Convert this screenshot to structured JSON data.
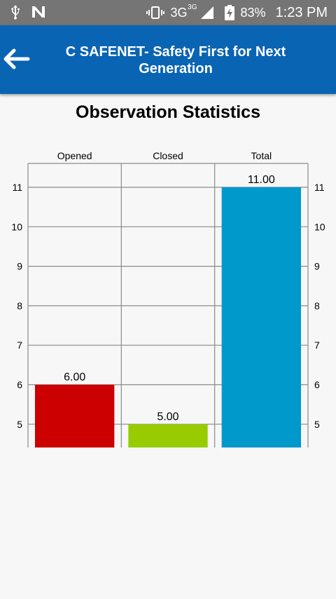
{
  "status_bar": {
    "network": "3G",
    "network_sup": "3G",
    "battery": "83%",
    "time": "1:23 PM"
  },
  "app_bar": {
    "back_icon": "arrow-left-icon",
    "title": "C SAFENET- Safety First for Next Generation"
  },
  "colors": {
    "status_bar": "#757575",
    "app_bar": "#0a64b4",
    "opened": "#cc0000",
    "closed": "#99cc00",
    "total": "#0099cc"
  },
  "chart_data": {
    "type": "bar",
    "title": "Observation Statistics",
    "categories": [
      "Opened",
      "Closed",
      "Total"
    ],
    "values": [
      6,
      5,
      11
    ],
    "value_labels": [
      "6.00",
      "5.00",
      "11.00"
    ],
    "colors": [
      "#cc0000",
      "#99cc00",
      "#0099cc"
    ],
    "yticks": [
      "5",
      "6",
      "7",
      "8",
      "9",
      "10",
      "11"
    ],
    "ylim": [
      4.4,
      11.6
    ],
    "grid": true
  }
}
